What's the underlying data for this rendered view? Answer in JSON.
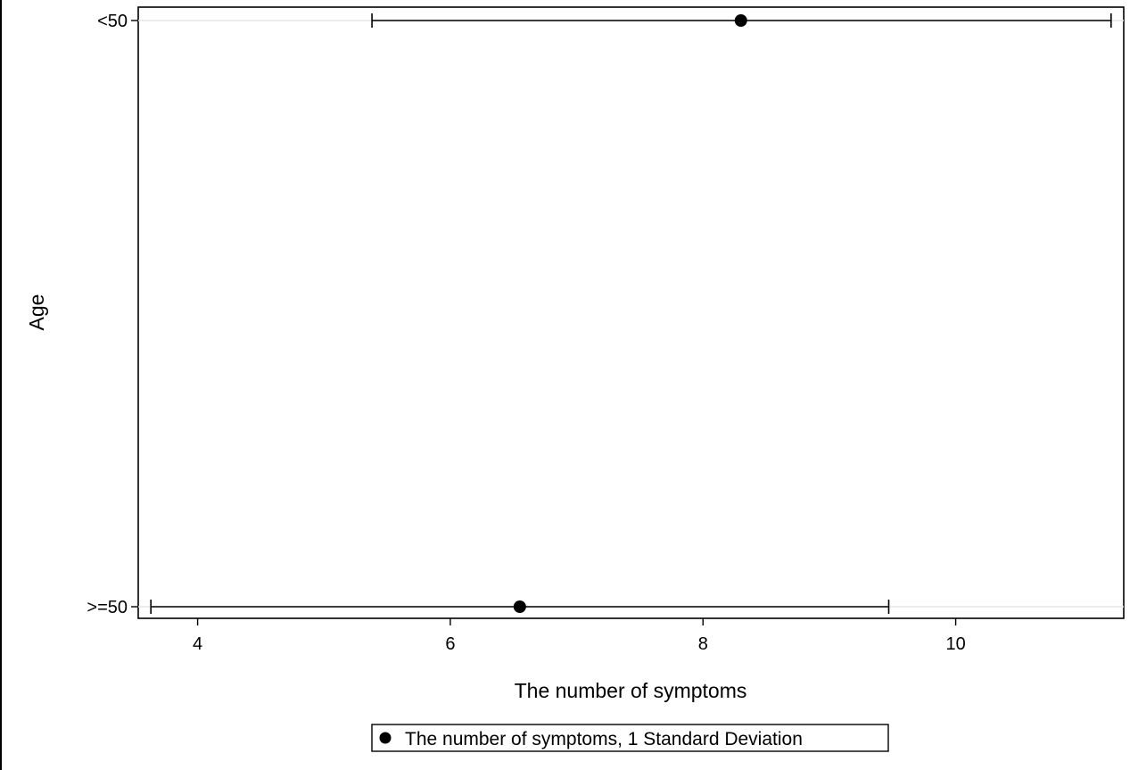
{
  "chart_data": {
    "type": "errorbar",
    "orientation": "horizontal",
    "xlabel": "The number of symptoms",
    "ylabel": "Age",
    "xlim": [
      3.53,
      11.33
    ],
    "x_ticks": [
      4,
      6,
      8,
      10
    ],
    "x_tick_labels": [
      "4",
      "6",
      "8",
      "10"
    ],
    "categories": [
      "<50",
      ">=50"
    ],
    "series": [
      {
        "name": "The number of symptoms, 1 Standard Deviation",
        "points": [
          {
            "category": "<50",
            "mean": 8.3,
            "low": 5.38,
            "high": 11.23
          },
          {
            "category": ">=50",
            "mean": 6.55,
            "low": 3.63,
            "high": 9.47
          }
        ]
      }
    ],
    "grid": "horizontal",
    "legend_position": "bottom",
    "colors": {
      "marker": "#000000",
      "grid": "#e6e6e6",
      "axis": "#000000"
    }
  }
}
